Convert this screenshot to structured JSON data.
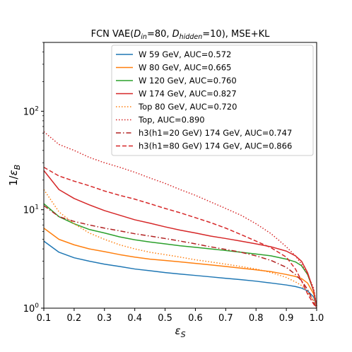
{
  "chart_data": {
    "type": "line",
    "title": {
      "prefix": "FCN VAE(",
      "d_in_base": "D",
      "d_in_sub": "in",
      "d_in_value": "=80, ",
      "d_hidden_base": "D",
      "d_hidden_sub": "hidden",
      "d_hidden_value": "=10), MSE+KL"
    },
    "xlabel": {
      "base": "ε",
      "sub": "S"
    },
    "ylabel": {
      "prefix": "1/",
      "base": "ε",
      "sub": "B"
    },
    "xlim": [
      0.1,
      1.0
    ],
    "ylim": [
      1,
      500
    ],
    "yscale": "log",
    "xticks": [
      "0.1",
      "0.2",
      "0.3",
      "0.4",
      "0.5",
      "0.6",
      "0.7",
      "0.8",
      "0.9",
      "1.0"
    ],
    "yticks": [
      {
        "value": 1,
        "base": "10",
        "exp": "0"
      },
      {
        "value": 10,
        "base": "10",
        "exp": "1"
      },
      {
        "value": 100,
        "base": "10",
        "exp": "2"
      }
    ],
    "grid": false,
    "legend_position": "top-right",
    "x": [
      0.1,
      0.15,
      0.2,
      0.25,
      0.3,
      0.35,
      0.4,
      0.45,
      0.5,
      0.55,
      0.6,
      0.65,
      0.7,
      0.75,
      0.8,
      0.85,
      0.9,
      0.93,
      0.95,
      0.97,
      0.99,
      1.0
    ],
    "series": [
      {
        "name": "W 59 GeV, AUC=0.572",
        "color": "#1f77b4",
        "dash": "solid",
        "values": [
          4.8,
          3.7,
          3.25,
          3.0,
          2.8,
          2.65,
          2.5,
          2.4,
          2.3,
          2.22,
          2.15,
          2.08,
          2.01,
          1.95,
          1.88,
          1.8,
          1.72,
          1.66,
          1.6,
          1.5,
          1.3,
          1.05
        ]
      },
      {
        "name": "W 80 GeV, AUC=0.665",
        "color": "#ff7f0e",
        "dash": "solid",
        "values": [
          6.5,
          5.0,
          4.4,
          4.0,
          3.75,
          3.5,
          3.3,
          3.15,
          3.05,
          2.95,
          2.85,
          2.75,
          2.65,
          2.55,
          2.45,
          2.35,
          2.2,
          2.1,
          2.0,
          1.8,
          1.4,
          1.05
        ]
      },
      {
        "name": "W 120 GeV, AUC=0.760",
        "color": "#2ca02c",
        "dash": "solid",
        "values": [
          11.5,
          8.5,
          7.2,
          6.3,
          5.8,
          5.3,
          4.95,
          4.7,
          4.5,
          4.3,
          4.15,
          4.0,
          3.85,
          3.7,
          3.55,
          3.4,
          3.15,
          2.95,
          2.7,
          2.2,
          1.5,
          1.05
        ]
      },
      {
        "name": "W 174 GeV, AUC=0.827",
        "color": "#d62728",
        "dash": "solid",
        "values": [
          25,
          16,
          13,
          11.2,
          9.8,
          8.8,
          7.9,
          7.3,
          6.7,
          6.2,
          5.8,
          5.4,
          5.1,
          4.8,
          4.5,
          4.2,
          3.8,
          3.4,
          3.0,
          2.3,
          1.5,
          1.05
        ]
      },
      {
        "name": "Top 80 GeV, AUC=0.720",
        "color": "#ff7f0e",
        "dash": "dotted",
        "values": [
          16,
          9.5,
          7.2,
          5.8,
          5.0,
          4.4,
          4.0,
          3.7,
          3.5,
          3.3,
          3.1,
          2.95,
          2.8,
          2.65,
          2.5,
          2.3,
          2.05,
          1.85,
          1.7,
          1.45,
          1.2,
          1.0
        ]
      },
      {
        "name": "Top, AUC=0.890",
        "color": "#d62728",
        "dash": "dotted",
        "values": [
          62,
          46,
          40,
          34,
          30,
          27,
          24,
          21,
          18.5,
          16,
          14,
          12,
          10.3,
          8.8,
          7.2,
          5.7,
          4.2,
          3.4,
          2.8,
          2.2,
          1.6,
          1.05
        ]
      },
      {
        "name": "h3(h1=20 GeV) 174 GeV, AUC=0.747",
        "color": "#b22222",
        "dash": "dashdot",
        "values": [
          11,
          8.5,
          7.6,
          7.0,
          6.5,
          6.1,
          5.7,
          5.4,
          5.1,
          4.8,
          4.5,
          4.2,
          3.95,
          3.7,
          3.4,
          3.05,
          2.6,
          2.2,
          1.9,
          1.55,
          1.15,
          1.0
        ]
      },
      {
        "name": "h3(h1=80 GeV) 174 GeV, AUC=0.866",
        "color": "#d62728",
        "dash": "dashed",
        "values": [
          27,
          22,
          19.5,
          17.5,
          15.5,
          14,
          12.8,
          11.5,
          10.3,
          9.3,
          8.3,
          7.4,
          6.5,
          5.6,
          4.8,
          4.1,
          3.3,
          2.5,
          1.9,
          1.4,
          1.1,
          1.0
        ]
      }
    ]
  }
}
